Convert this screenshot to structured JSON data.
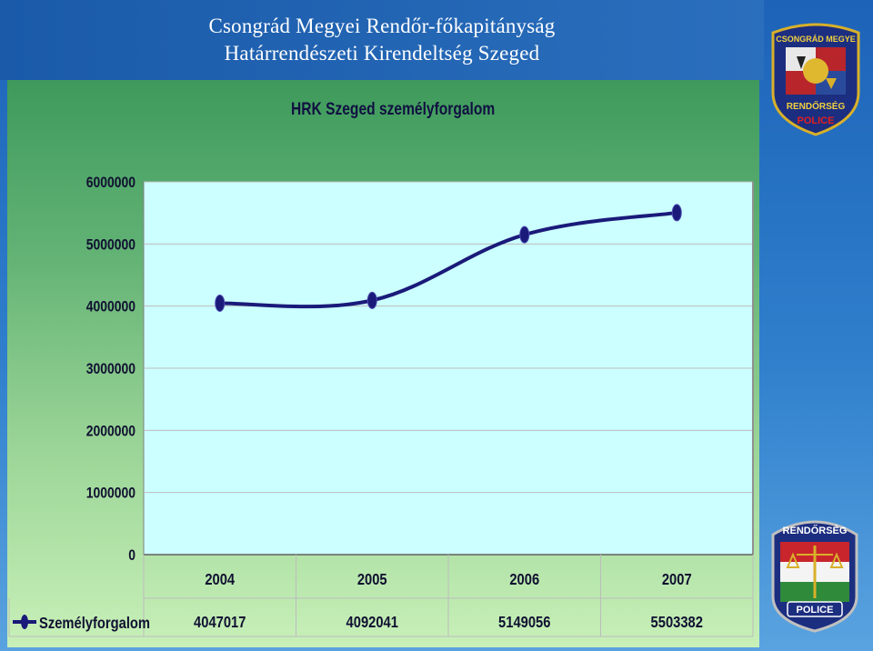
{
  "header": {
    "line1": "Csongrád Megyei Rendőr-főkapitányság",
    "line2": "Határrendészeti Kirendeltség Szeged"
  },
  "badges": {
    "top": {
      "top_text": "CSONGRÁD MEGYE",
      "middle_text": "RENDŐRSÉG",
      "bottom_text": "POLICE"
    },
    "bottom": {
      "top_text": "RENDŐRSÉG",
      "bottom_text": "POLICE"
    }
  },
  "colors": {
    "plot_background": "#ccffff",
    "series_line": "#1a1a7a"
  },
  "chart_data": {
    "type": "line",
    "title": "HRK Szeged személyforgalom",
    "categories": [
      "2004",
      "2005",
      "2006",
      "2007"
    ],
    "series": [
      {
        "name": "Személyforgalom",
        "values": [
          4047017,
          4092041,
          5149056,
          5503382
        ]
      }
    ],
    "value_labels": [
      "4047017",
      "4092041",
      "5149056",
      "5503382"
    ],
    "yticks": [
      0,
      1000000,
      2000000,
      3000000,
      4000000,
      5000000,
      6000000
    ],
    "ylim": [
      0,
      6000000
    ],
    "grid": true,
    "legend": "data-table-left"
  }
}
